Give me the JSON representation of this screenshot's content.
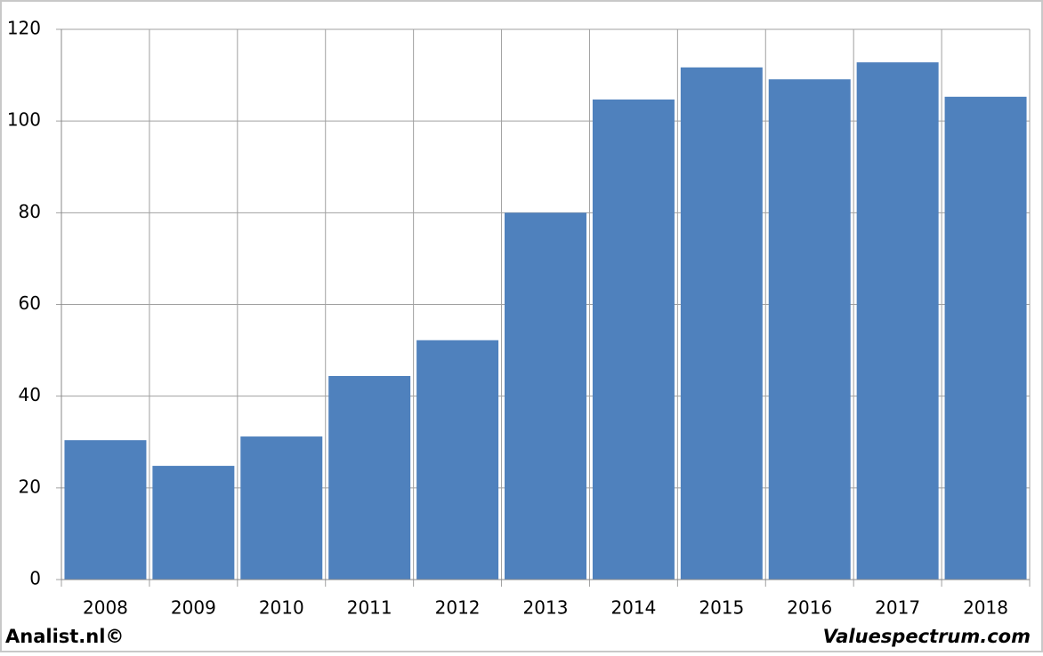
{
  "chart_data": {
    "type": "bar",
    "categories": [
      "2008",
      "2009",
      "2010",
      "2011",
      "2012",
      "2013",
      "2014",
      "2015",
      "2016",
      "2017",
      "2018"
    ],
    "values": [
      30.4,
      24.8,
      31.2,
      44.4,
      52.2,
      80,
      104.7,
      111.7,
      109.1,
      112.8,
      105.3
    ],
    "color": "#4f81bd",
    "ylim": [
      0,
      120
    ],
    "yticks": [
      0,
      20,
      40,
      60,
      80,
      100,
      120
    ],
    "grid": true
  },
  "footer": {
    "left": "Analist.nl©",
    "right": "Valuespectrum.com"
  }
}
